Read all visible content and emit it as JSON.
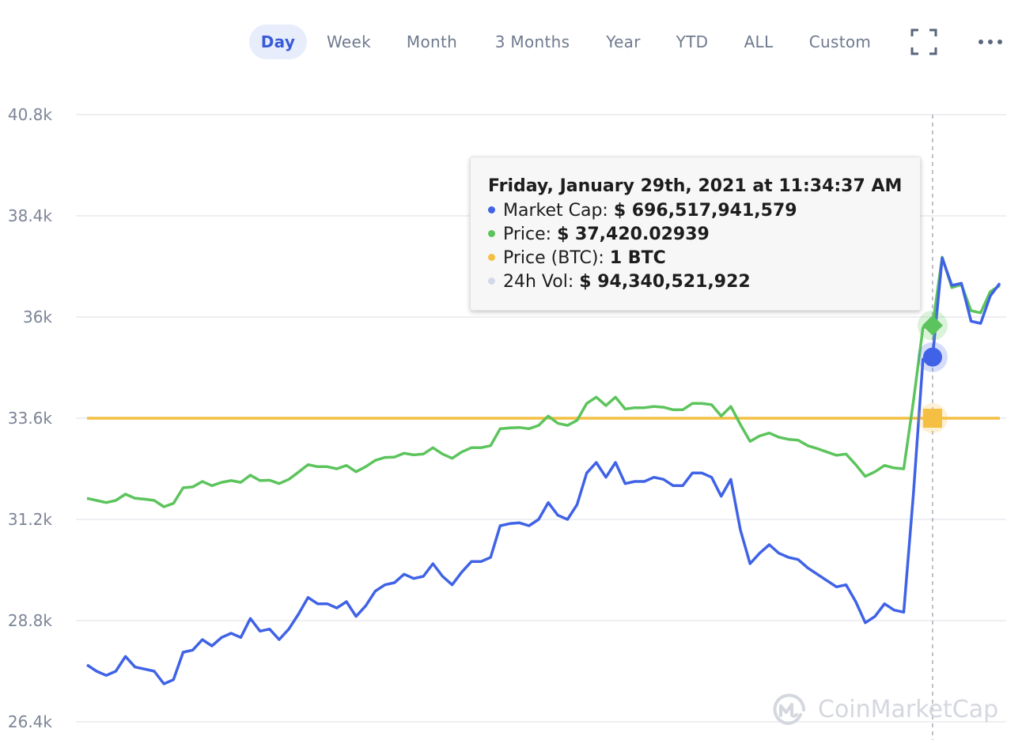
{
  "toolbar": {
    "tabs": [
      {
        "label": "Day",
        "active": true
      },
      {
        "label": "Week",
        "active": false
      },
      {
        "label": "Month",
        "active": false
      },
      {
        "label": "3 Months",
        "active": false
      },
      {
        "label": "Year",
        "active": false
      },
      {
        "label": "YTD",
        "active": false
      },
      {
        "label": "ALL",
        "active": false
      },
      {
        "label": "Custom",
        "active": false
      }
    ],
    "icons": [
      "fullscreen-icon",
      "more-options-icon"
    ]
  },
  "tooltip": {
    "title": "Friday, January 29th, 2021 at 11:34:37 AM",
    "rows": [
      {
        "label": "Market Cap:",
        "value": "$ 696,517,941,579",
        "color": "#3f62e6"
      },
      {
        "label": "Price:",
        "value": "$ 37,420.02939",
        "color": "#5cc45c"
      },
      {
        "label": "Price (BTC):",
        "value": "1 BTC",
        "color": "#f4bf42"
      },
      {
        "label": "24h Vol:",
        "value": "$ 94,340,521,922",
        "color": "#d3d8e8"
      }
    ]
  },
  "watermark": {
    "text": "CoinMarketCap"
  },
  "colors": {
    "market_cap": "#3f62e6",
    "price": "#5cc45c",
    "price_btc": "#f4bf42",
    "volume": "#d3d8e8",
    "grid": "#e8eaee",
    "accent": "#3a5bd9"
  },
  "chart_data": {
    "type": "line",
    "y_tick_labels": [
      "40.8k",
      "38.4k",
      "36k",
      "33.6k",
      "31.2k",
      "28.8k",
      "26.4k"
    ],
    "ylim": [
      26.4,
      40.8
    ],
    "grid": true,
    "legend": "none",
    "hover_index": 88,
    "series": [
      {
        "name": "Market Cap",
        "values": [
          27.75,
          27.6,
          27.5,
          27.6,
          27.95,
          27.7,
          27.65,
          27.6,
          27.3,
          27.4,
          28.05,
          28.1,
          28.35,
          28.2,
          28.4,
          28.5,
          28.4,
          28.85,
          28.55,
          28.6,
          28.35,
          28.6,
          28.95,
          29.35,
          29.2,
          29.2,
          29.1,
          29.25,
          28.9,
          29.15,
          29.5,
          29.65,
          29.7,
          29.9,
          29.8,
          29.85,
          30.15,
          29.85,
          29.65,
          29.95,
          30.2,
          30.2,
          30.3,
          31.05,
          31.1,
          31.12,
          31.05,
          31.2,
          31.6,
          31.3,
          31.2,
          31.55,
          32.3,
          32.55,
          32.2,
          32.55,
          32.05,
          32.1,
          32.1,
          32.2,
          32.15,
          32.0,
          32.0,
          32.3,
          32.3,
          32.2,
          31.75,
          32.15,
          30.95,
          30.15,
          30.4,
          30.6,
          30.4,
          30.3,
          30.25,
          30.05,
          29.9,
          29.75,
          29.6,
          29.65,
          29.25,
          28.75,
          28.9,
          29.2,
          29.05,
          29.0,
          31.8,
          35.0,
          35.05,
          37.4,
          36.75,
          36.8,
          35.9,
          35.85,
          36.5,
          36.8
        ]
      },
      {
        "name": "Price",
        "values": [
          31.7,
          31.65,
          31.6,
          31.65,
          31.8,
          31.7,
          31.68,
          31.65,
          31.5,
          31.58,
          31.95,
          31.97,
          32.1,
          32.0,
          32.08,
          32.12,
          32.08,
          32.25,
          32.12,
          32.13,
          32.05,
          32.15,
          32.32,
          32.5,
          32.45,
          32.45,
          32.4,
          32.48,
          32.33,
          32.45,
          32.6,
          32.67,
          32.68,
          32.77,
          32.73,
          32.75,
          32.9,
          32.75,
          32.65,
          32.8,
          32.9,
          32.9,
          32.95,
          33.35,
          33.37,
          33.38,
          33.35,
          33.43,
          33.65,
          33.48,
          33.43,
          33.55,
          33.95,
          34.1,
          33.9,
          34.1,
          33.82,
          33.85,
          33.85,
          33.88,
          33.86,
          33.8,
          33.8,
          33.95,
          33.95,
          33.92,
          33.65,
          33.88,
          33.45,
          33.05,
          33.18,
          33.25,
          33.15,
          33.1,
          33.08,
          32.95,
          32.88,
          32.8,
          32.72,
          32.75,
          32.5,
          32.22,
          32.33,
          32.48,
          32.42,
          32.4,
          34.0,
          35.75,
          35.8,
          37.42,
          36.7,
          36.77,
          36.15,
          36.1,
          36.6,
          36.75
        ]
      },
      {
        "name": "Price (BTC)",
        "constant": 33.6,
        "display_value": "1 BTC"
      }
    ]
  }
}
